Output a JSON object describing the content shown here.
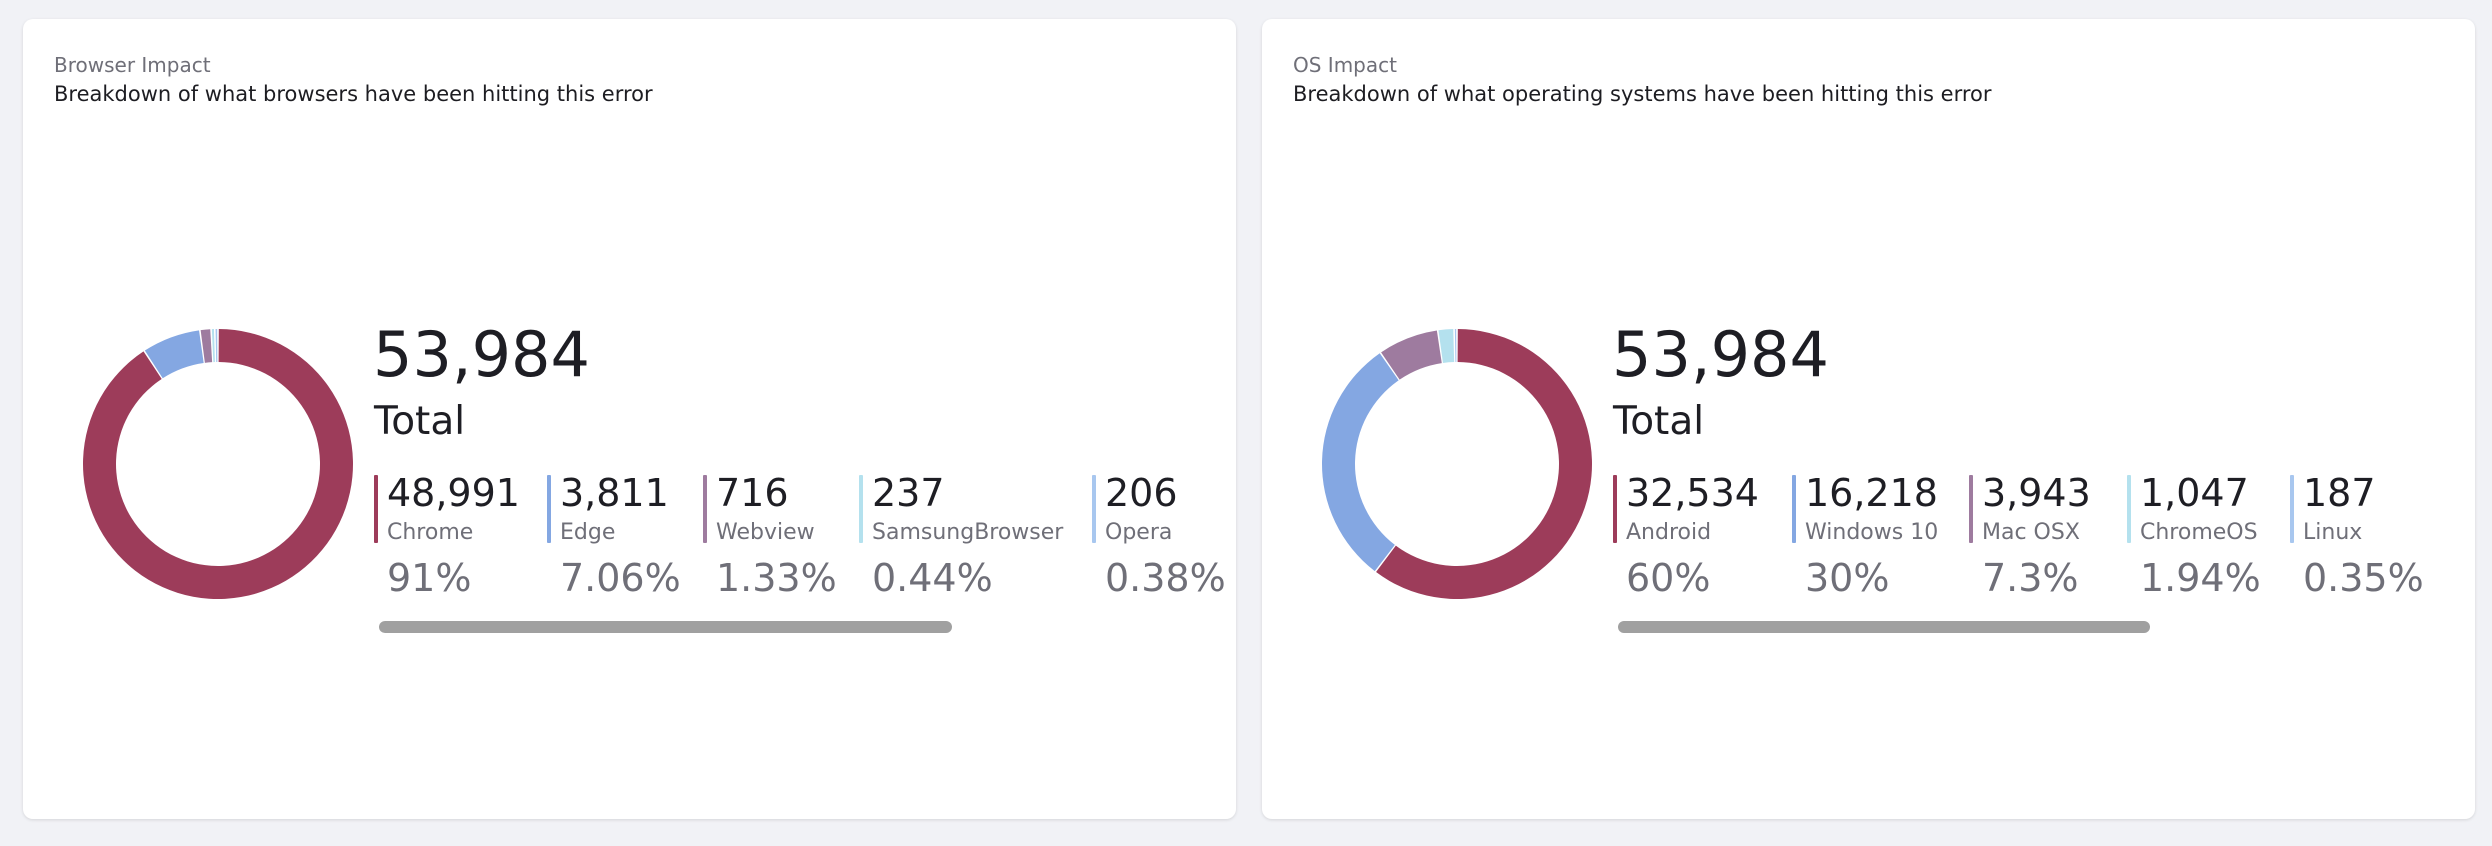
{
  "cards": [
    {
      "title": "Browser Impact",
      "subtitle": "Breakdown of what browsers have been hitting this error",
      "total_value": "53,984",
      "total_label": "Total",
      "items": [
        {
          "count": "48,991",
          "name": "Chrome",
          "pct": "91%",
          "value": 48991,
          "color": "#9d3c5a"
        },
        {
          "count": "3,811",
          "name": "Edge",
          "pct": "7.06%",
          "value": 3811,
          "color": "#84a7e2"
        },
        {
          "count": "716",
          "name": "Webview",
          "pct": "1.33%",
          "value": 716,
          "color": "#9e7b9f"
        },
        {
          "count": "237",
          "name": "SamsungBrowser",
          "pct": "0.44%",
          "value": 237,
          "color": "#b4e1ee"
        },
        {
          "count": "206",
          "name": "Opera",
          "pct": "0.38%",
          "value": 206,
          "color": "#a8c7ef"
        }
      ]
    },
    {
      "title": "OS Impact",
      "subtitle": "Breakdown of what operating systems have been hitting this error",
      "total_value": "53,984",
      "total_label": "Total",
      "items": [
        {
          "count": "32,534",
          "name": "Android",
          "pct": "60%",
          "value": 32534,
          "color": "#9d3c5a"
        },
        {
          "count": "16,218",
          "name": "Windows 10",
          "pct": "30%",
          "value": 16218,
          "color": "#84a7e2"
        },
        {
          "count": "3,943",
          "name": "Mac OSX",
          "pct": "7.3%",
          "value": 3943,
          "color": "#9e7b9f"
        },
        {
          "count": "1,047",
          "name": "ChromeOS",
          "pct": "1.94%",
          "value": 1047,
          "color": "#b4e1ee"
        },
        {
          "count": "187",
          "name": "Linux",
          "pct": "0.35%",
          "value": 187,
          "color": "#a8c7ef"
        }
      ]
    }
  ],
  "chart_data": [
    {
      "type": "pie",
      "title": "Browser Impact",
      "categories": [
        "Chrome",
        "Edge",
        "Webview",
        "SamsungBrowser",
        "Opera"
      ],
      "values": [
        48991,
        3811,
        716,
        237,
        206
      ],
      "percentages": [
        "91%",
        "7.06%",
        "1.33%",
        "0.44%",
        "0.38%"
      ],
      "total": 53984
    },
    {
      "type": "pie",
      "title": "OS Impact",
      "categories": [
        "Android",
        "Windows 10",
        "Mac OSX",
        "ChromeOS",
        "Linux"
      ],
      "values": [
        32534,
        16218,
        3943,
        1047,
        187
      ],
      "percentages": [
        "60%",
        "30%",
        "7.3%",
        "1.94%",
        "0.35%"
      ],
      "total": 53984
    }
  ]
}
